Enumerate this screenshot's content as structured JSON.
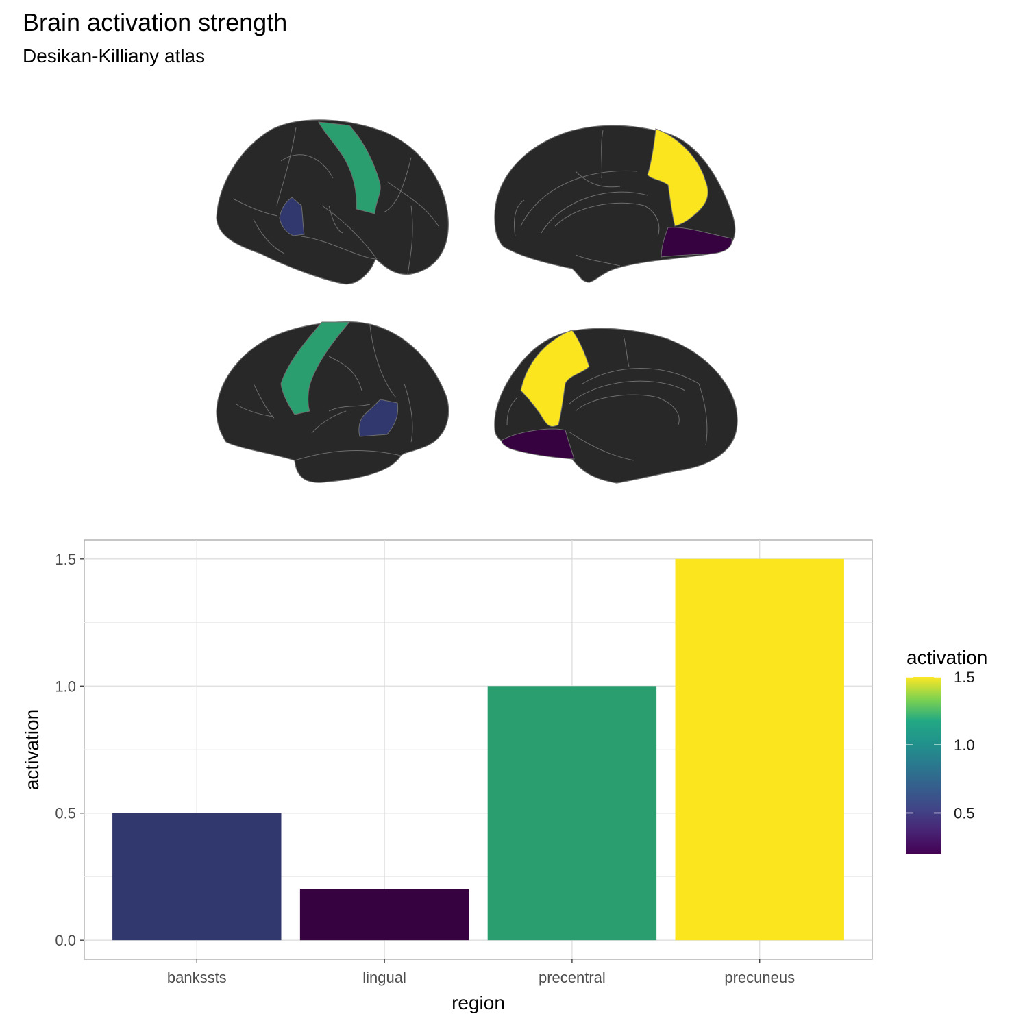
{
  "title": "Brain activation strength",
  "subtitle": "Desikan-Killiany atlas",
  "colors": {
    "bankssts": "#31386e",
    "lingual": "#360340",
    "precentral": "#2b9e70",
    "precuneus": "#fae51f",
    "cortex": "#282828",
    "outline": "#6e6e6e"
  },
  "chart_data": {
    "type": "bar",
    "categories": [
      "bankssts",
      "lingual",
      "precentral",
      "precuneus"
    ],
    "values": [
      0.5,
      0.2,
      1.0,
      1.5
    ],
    "xlabel": "region",
    "ylabel": "activation",
    "ylim": [
      -0.075,
      1.575
    ],
    "yticks": [
      0.0,
      0.5,
      1.0,
      1.5
    ],
    "ytick_labels": [
      "0.0",
      "0.5",
      "1.0",
      "1.5"
    ],
    "grid": true,
    "legend": {
      "title": "activation",
      "type": "colorbar",
      "placement": "right",
      "range": [
        0.2,
        1.5
      ],
      "ticks": [
        0.5,
        1.0,
        1.5
      ],
      "tick_labels": [
        "0.5",
        "1.0",
        "1.5"
      ]
    }
  }
}
